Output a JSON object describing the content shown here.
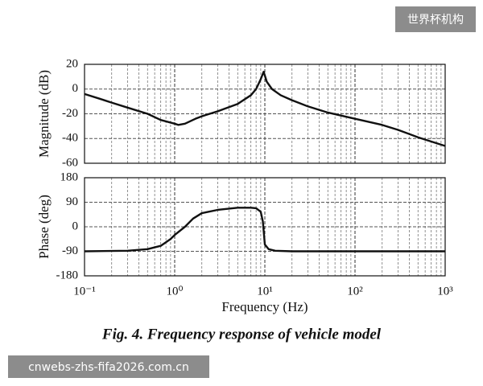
{
  "chart_data": [
    {
      "type": "line",
      "ylabel": "Magnitude (dB)",
      "xscale": "log",
      "grid": true,
      "color": "#111111",
      "x": [
        0.1,
        0.15,
        0.2,
        0.3,
        0.5,
        0.7,
        1.0,
        1.1,
        1.3,
        1.7,
        2,
        3,
        5,
        7,
        8,
        9,
        9.7,
        10.5,
        12,
        15,
        20,
        30,
        50,
        100,
        200,
        300,
        500,
        1000
      ],
      "values": [
        -4,
        -8,
        -11,
        -15,
        -20,
        -25,
        -28,
        -29,
        -28,
        -24,
        -22,
        -18,
        -12,
        -5,
        0,
        8,
        14,
        6,
        0,
        -5,
        -9,
        -14,
        -19,
        -24,
        -29,
        -33,
        -39,
        -46
      ],
      "xlim": [
        0.1,
        1000
      ],
      "xticks": [
        0.1,
        1,
        10,
        100,
        1000
      ],
      "ylim": [
        -60,
        20
      ],
      "yticks": [
        -60,
        -40,
        -20,
        0,
        20
      ]
    },
    {
      "type": "line",
      "ylabel": "Phase (deg)",
      "xlabel": "Frequency (Hz)",
      "xscale": "log",
      "grid": true,
      "color": "#111111",
      "x": [
        0.1,
        0.3,
        0.5,
        0.7,
        0.9,
        1.0,
        1.3,
        1.6,
        2,
        3,
        5,
        7,
        8,
        9,
        9.5,
        10,
        11,
        13,
        20,
        1000
      ],
      "values": [
        -90,
        -88,
        -82,
        -70,
        -45,
        -30,
        0,
        30,
        50,
        62,
        70,
        70,
        68,
        55,
        20,
        -65,
        -82,
        -88,
        -90,
        -90
      ],
      "xlim": [
        0.1,
        1000
      ],
      "xticks": [
        {
          "value": 0.1,
          "label": "10⁻¹"
        },
        {
          "value": 1,
          "label": "10⁰"
        },
        {
          "value": 10,
          "label": "10¹"
        },
        {
          "value": 100,
          "label": "10²"
        },
        {
          "value": 1000,
          "label": "10³"
        }
      ],
      "ylim": [
        -180,
        180
      ],
      "yticks": [
        -180,
        -90,
        0,
        90,
        180
      ]
    }
  ],
  "caption": "Fig. 4. Frequency response of vehicle model",
  "watermarks": [
    "世界杯机构",
    "cnwebs-zhs-fifa2026.com.cn"
  ]
}
